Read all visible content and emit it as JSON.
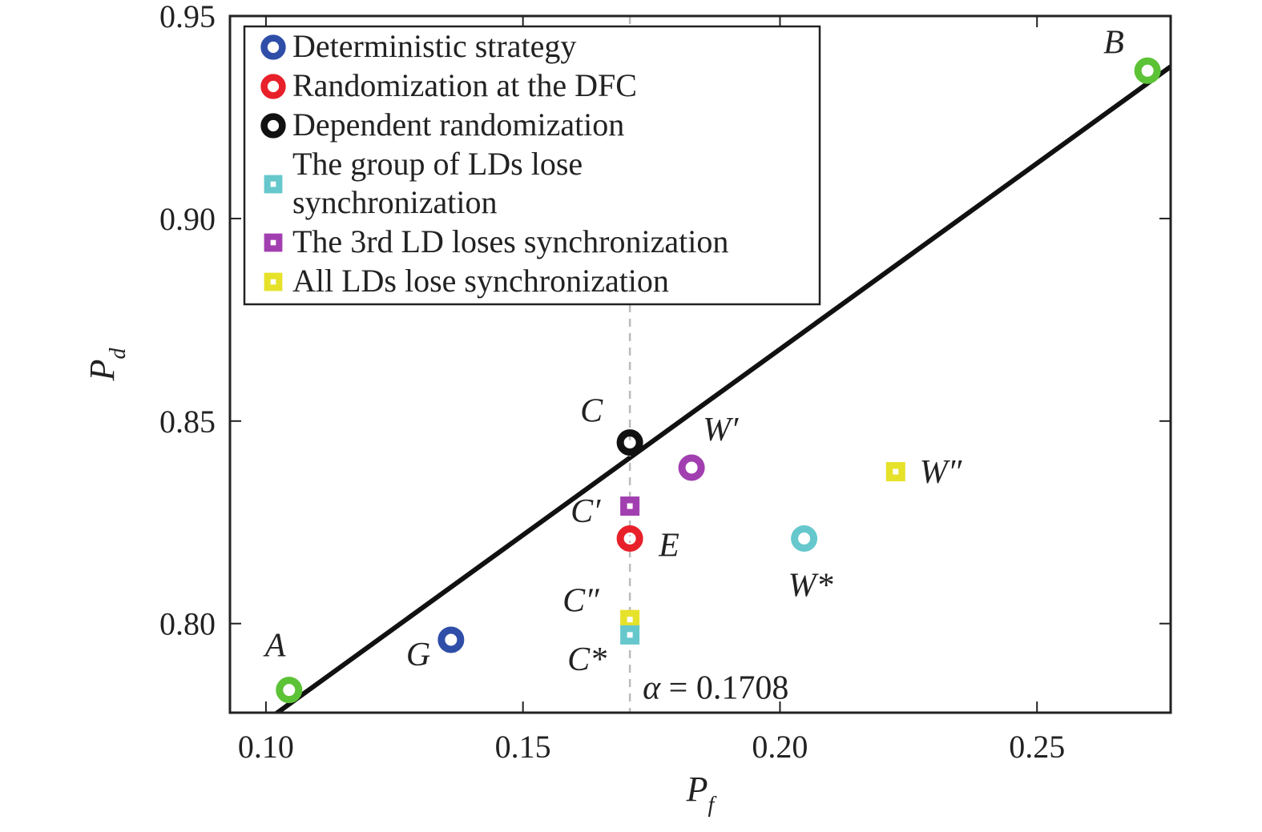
{
  "chart_data": {
    "type": "scatter",
    "xlabel": "P",
    "xlabel_sub": "f",
    "ylabel": "P",
    "ylabel_sub": "d",
    "xlim": [
      0.093,
      0.276
    ],
    "ylim": [
      0.778,
      0.95
    ],
    "xticks": [
      0.1,
      0.15,
      0.2,
      0.25
    ],
    "xtick_labels": [
      "0.10",
      "0.15",
      "0.20",
      "0.25"
    ],
    "yticks": [
      0.8,
      0.85,
      0.9,
      0.95
    ],
    "ytick_labels": [
      "0.80",
      "0.85",
      "0.90",
      "0.95"
    ],
    "grid": false,
    "legend_position": "top-left",
    "line": {
      "points": [
        {
          "x": 0.0995,
          "y": 0.7755
        },
        {
          "x": 0.276,
          "y": 0.9375
        }
      ],
      "color": "#111111"
    },
    "vertical_line": {
      "x": 0.1708,
      "color": "#bbbbbb",
      "label_symbol": "α",
      "label_eq": " = ",
      "label_value": "0.1708"
    },
    "legend": [
      {
        "marker": "circle",
        "color": "#2e4ea8",
        "lines": [
          "Deterministic strategy"
        ]
      },
      {
        "marker": "circle",
        "color": "#e8202a",
        "lines": [
          "Randomization at the DFC"
        ]
      },
      {
        "marker": "circle",
        "color": "#111111",
        "lines": [
          "Dependent randomization"
        ]
      },
      {
        "marker": "square",
        "color": "#66c8cc",
        "lines": [
          "The group of LDs lose",
          "synchronization"
        ]
      },
      {
        "marker": "square",
        "color": "#a23fb0",
        "lines": [
          "The 3rd LD loses synchronization"
        ]
      },
      {
        "marker": "square",
        "color": "#e6e22a",
        "lines": [
          "All LDs lose synchronization"
        ]
      }
    ],
    "points": [
      {
        "label": "A",
        "x": 0.1045,
        "y": 0.7836,
        "marker": "circle",
        "color": "#5cc236",
        "label_dx": -30,
        "label_dy": -42
      },
      {
        "label": "B",
        "x": 0.2715,
        "y": 0.9365,
        "marker": "circle",
        "color": "#5cc236",
        "label_dx": -55,
        "label_dy": -22
      },
      {
        "label": "C",
        "x": 0.1708,
        "y": 0.8447,
        "marker": "circle",
        "color": "#111111",
        "label_dx": -62,
        "label_dy": -26
      },
      {
        "label": "G",
        "x": 0.136,
        "y": 0.796,
        "marker": "circle",
        "color": "#2e4ea8",
        "label_dx": -56,
        "label_dy": 32
      },
      {
        "label": "E",
        "x": 0.1708,
        "y": 0.821,
        "marker": "circle",
        "color": "#e8202a",
        "label_dx": 36,
        "label_dy": 22
      },
      {
        "label": "W′",
        "x": 0.1828,
        "y": 0.8385,
        "marker": "circle",
        "color": "#a23fb0",
        "label_dx": 14,
        "label_dy": -34
      },
      {
        "label": "W*",
        "x": 0.2047,
        "y": 0.821,
        "marker": "circle",
        "color": "#66c8cc",
        "label_dx": -20,
        "label_dy": 72
      },
      {
        "label": "C′",
        "x": 0.1708,
        "y": 0.829,
        "marker": "square",
        "color": "#a23fb0",
        "label_dx": -74,
        "label_dy": 20
      },
      {
        "label": "C″",
        "x": 0.1708,
        "y": 0.801,
        "marker": "square",
        "color": "#e6e22a",
        "label_dx": -84,
        "label_dy": -10
      },
      {
        "label": "C*",
        "x": 0.1708,
        "y": 0.7972,
        "marker": "square",
        "color": "#66c8cc",
        "label_dx": -78,
        "label_dy": 44
      },
      {
        "label": "W″",
        "x": 0.2225,
        "y": 0.8375,
        "marker": "square",
        "color": "#e6e22a",
        "label_dx": 30,
        "label_dy": 14
      }
    ]
  }
}
